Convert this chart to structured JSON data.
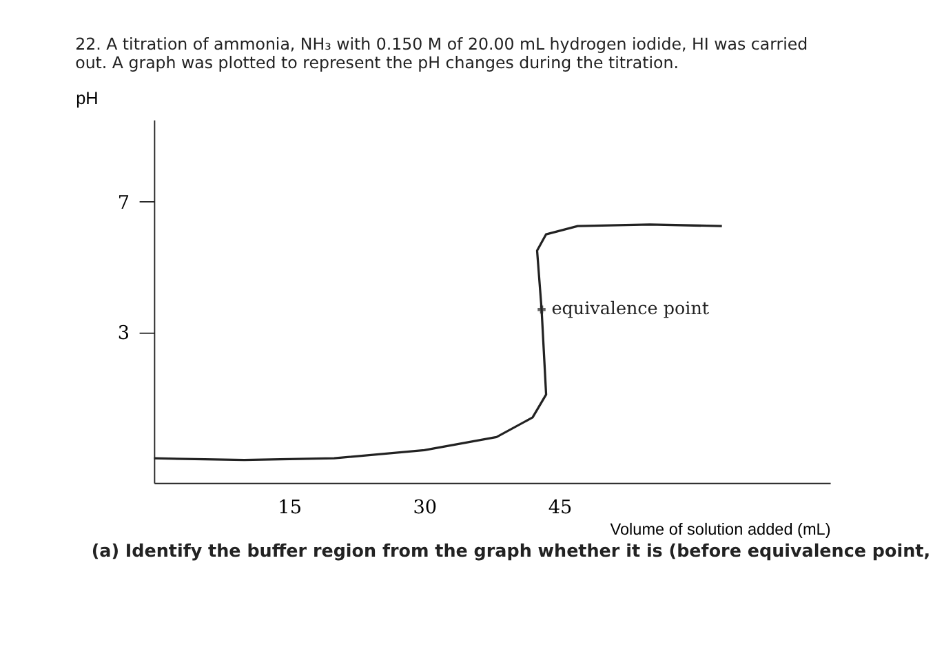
{
  "chart_data": {
    "type": "line",
    "title": "22. A titration of ammonia, NH₃ with 0.150 M of 20.00 mL hydrogen iodide, HI was carried out. A graph was plotted to represent the pH changes during the titration.",
    "xlabel": "Volume of solution added (mL)",
    "ylabel": "pH",
    "series": [
      {
        "color": "#222222",
        "x": [
          0,
          10,
          20,
          30,
          38,
          42,
          43.5,
          43,
          42.5,
          43.5,
          47,
          55,
          63
        ],
        "values": [
          -0.85,
          -0.9,
          -0.85,
          -0.6,
          -0.2,
          0.4,
          1.1,
          3.7,
          5.5,
          6.0,
          6.25,
          6.3,
          6.25
        ]
      }
    ],
    "xlim": [
      0,
      75
    ],
    "xticks": [
      15,
      30,
      45
    ],
    "ylim": [
      -1.6,
      9.5
    ],
    "yticks": [
      3,
      7
    ],
    "grid": false,
    "marker": "none",
    "line_style": "solid",
    "annotations": [
      {
        "text": "equivalence point",
        "x": 43,
        "y": 3.7
      },
      "(a) Identify the buffer region from the graph whether it is (before equivalence point,"
    ]
  }
}
